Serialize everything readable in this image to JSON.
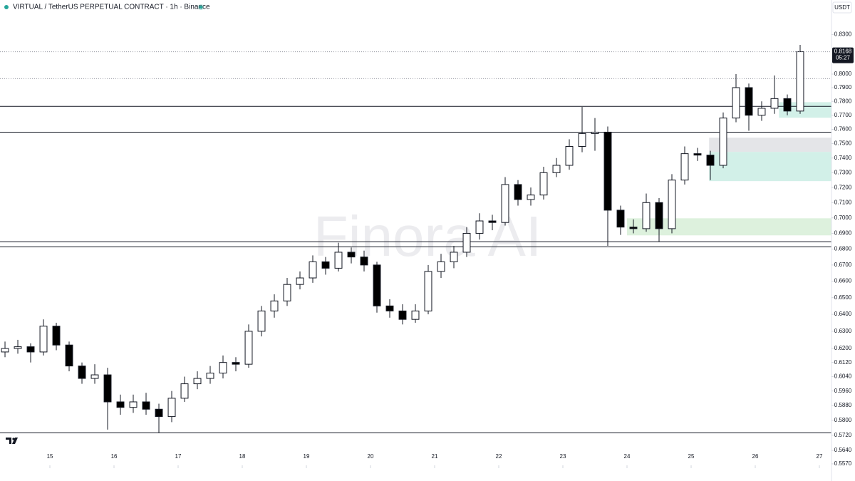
{
  "chart_data": {
    "type": "candlestick",
    "title": "VIRTUAL / TetherUS PERPETUAL CONTRACT · 1h · Binance",
    "currency": "USDT",
    "countdown": "05:27",
    "watermark": "Finora AI",
    "log_scale": true,
    "up_color": "#ffffff",
    "down_color": "#000000",
    "x": [
      14.3,
      14.5,
      14.7,
      14.9,
      15.1,
      15.3,
      15.5,
      15.7,
      15.9,
      16.1,
      16.3,
      16.5,
      16.7,
      16.9,
      17.1,
      17.3,
      17.5,
      17.7,
      17.9,
      18.1,
      18.3,
      18.5,
      18.7,
      18.9,
      19.1,
      19.3,
      19.5,
      19.7,
      19.9,
      20.1,
      20.3,
      20.5,
      20.7,
      20.9,
      21.1,
      21.3,
      21.5,
      21.7,
      21.9,
      22.1,
      22.3,
      22.5,
      22.7,
      22.9,
      23.1,
      23.3,
      23.5,
      23.7,
      23.9,
      24.1,
      24.3,
      24.5,
      24.7,
      24.9,
      25.1,
      25.3,
      25.5,
      25.7,
      25.9,
      26.1,
      26.3,
      26.5,
      26.7
    ],
    "open": [
      0.618,
      0.62,
      0.621,
      0.618,
      0.633,
      0.622,
      0.61,
      0.603,
      0.605,
      0.59,
      0.587,
      0.59,
      0.586,
      0.582,
      0.592,
      0.6,
      0.603,
      0.606,
      0.612,
      0.611,
      0.63,
      0.642,
      0.648,
      0.658,
      0.662,
      0.672,
      0.668,
      0.678,
      0.675,
      0.67,
      0.645,
      0.642,
      0.637,
      0.642,
      0.666,
      0.672,
      0.678,
      0.69,
      0.698,
      0.697,
      0.722,
      0.712,
      0.715,
      0.73,
      0.735,
      0.748,
      0.757,
      0.758,
      0.705,
      0.694,
      0.693,
      0.71,
      0.693,
      0.725,
      0.743,
      0.742,
      0.735,
      0.768,
      0.79,
      0.77,
      0.775,
      0.782,
      0.773
    ],
    "high": [
      0.624,
      0.625,
      0.623,
      0.637,
      0.635,
      0.624,
      0.612,
      0.611,
      0.609,
      0.594,
      0.594,
      0.595,
      0.589,
      0.596,
      0.604,
      0.607,
      0.61,
      0.616,
      0.615,
      0.634,
      0.645,
      0.652,
      0.662,
      0.666,
      0.676,
      0.675,
      0.684,
      0.681,
      0.679,
      0.672,
      0.649,
      0.646,
      0.646,
      0.67,
      0.677,
      0.682,
      0.694,
      0.703,
      0.702,
      0.727,
      0.725,
      0.72,
      0.734,
      0.74,
      0.753,
      0.776,
      0.768,
      0.762,
      0.708,
      0.699,
      0.716,
      0.713,
      0.729,
      0.748,
      0.747,
      0.745,
      0.772,
      0.8,
      0.793,
      0.78,
      0.799,
      0.785,
      0.822
    ],
    "low": [
      0.615,
      0.617,
      0.612,
      0.616,
      0.619,
      0.607,
      0.6,
      0.6,
      0.575,
      0.583,
      0.584,
      0.583,
      0.5733,
      0.579,
      0.59,
      0.597,
      0.6,
      0.603,
      0.607,
      0.609,
      0.627,
      0.638,
      0.645,
      0.655,
      0.659,
      0.664,
      0.666,
      0.671,
      0.666,
      0.641,
      0.638,
      0.634,
      0.635,
      0.64,
      0.662,
      0.668,
      0.675,
      0.686,
      0.692,
      0.695,
      0.708,
      0.708,
      0.712,
      0.727,
      0.732,
      0.744,
      0.745,
      0.682,
      0.689,
      0.69,
      0.691,
      0.6846,
      0.69,
      0.722,
      0.738,
      0.725,
      0.733,
      0.765,
      0.759,
      0.766,
      0.771,
      0.77,
      0.771
    ],
    "close": [
      0.62,
      0.621,
      0.618,
      0.633,
      0.622,
      0.61,
      0.603,
      0.605,
      0.59,
      0.587,
      0.59,
      0.586,
      0.582,
      0.592,
      0.6,
      0.603,
      0.606,
      0.612,
      0.611,
      0.63,
      0.642,
      0.648,
      0.658,
      0.662,
      0.672,
      0.668,
      0.678,
      0.675,
      0.67,
      0.645,
      0.642,
      0.637,
      0.642,
      0.666,
      0.672,
      0.678,
      0.69,
      0.698,
      0.697,
      0.722,
      0.712,
      0.715,
      0.73,
      0.735,
      0.748,
      0.757,
      0.758,
      0.705,
      0.694,
      0.693,
      0.71,
      0.693,
      0.725,
      0.743,
      0.742,
      0.735,
      0.768,
      0.79,
      0.77,
      0.775,
      0.782,
      0.773,
      0.8168
    ],
    "xlim": [
      14.222,
      27.189
    ],
    "xticks": [
      15,
      16,
      17,
      18,
      19,
      20,
      21,
      22,
      23,
      24,
      25,
      26,
      27
    ],
    "ylim": [
      0.5555,
      0.857
    ],
    "yticks": [
      {
        "value": 0.83,
        "label": "0.8300"
      },
      {
        "value": 0.8,
        "label": "0.8000"
      },
      {
        "value": 0.79,
        "label": "0.7900"
      },
      {
        "value": 0.78,
        "label": "0.7800"
      },
      {
        "value": 0.77,
        "label": "0.7700"
      },
      {
        "value": 0.76,
        "label": "0.7600"
      },
      {
        "value": 0.75,
        "label": "0.7500"
      },
      {
        "value": 0.74,
        "label": "0.7400"
      },
      {
        "value": 0.73,
        "label": "0.7300"
      },
      {
        "value": 0.72,
        "label": "0.7200"
      },
      {
        "value": 0.71,
        "label": "0.7100"
      },
      {
        "value": 0.7,
        "label": "0.7000"
      },
      {
        "value": 0.69,
        "label": "0.6900"
      },
      {
        "value": 0.68,
        "label": "0.6800"
      },
      {
        "value": 0.67,
        "label": "0.6700"
      },
      {
        "value": 0.66,
        "label": "0.6600"
      },
      {
        "value": 0.65,
        "label": "0.6500"
      },
      {
        "value": 0.64,
        "label": "0.6400"
      },
      {
        "value": 0.63,
        "label": "0.6300"
      },
      {
        "value": 0.62,
        "label": "0.6200"
      },
      {
        "value": 0.612,
        "label": "0.6120"
      },
      {
        "value": 0.604,
        "label": "0.6040"
      },
      {
        "value": 0.596,
        "label": "0.5960"
      },
      {
        "value": 0.588,
        "label": "0.5880"
      },
      {
        "value": 0.58,
        "label": "0.5800"
      },
      {
        "value": 0.572,
        "label": "0.5720"
      },
      {
        "value": 0.564,
        "label": "0.5640"
      },
      {
        "value": 0.557,
        "label": "0.5570"
      }
    ],
    "levels": [
      0.7764,
      0.758,
      0.6846,
      0.6814,
      0.5733
    ],
    "dotted_levels": [
      0.7966
    ],
    "zones": [
      {
        "low": 0.7682,
        "high": 0.7794,
        "start": 26.37,
        "color": "#cdeee6"
      },
      {
        "low": 0.7442,
        "high": 0.7541,
        "start": 25.28,
        "color": "#e1e2e6"
      },
      {
        "low": 0.7243,
        "high": 0.7442,
        "start": 25.28,
        "color": "#cdeee6"
      },
      {
        "low": 0.6887,
        "high": 0.6997,
        "start": 24.0,
        "color": "#d9f0d9"
      }
    ]
  }
}
